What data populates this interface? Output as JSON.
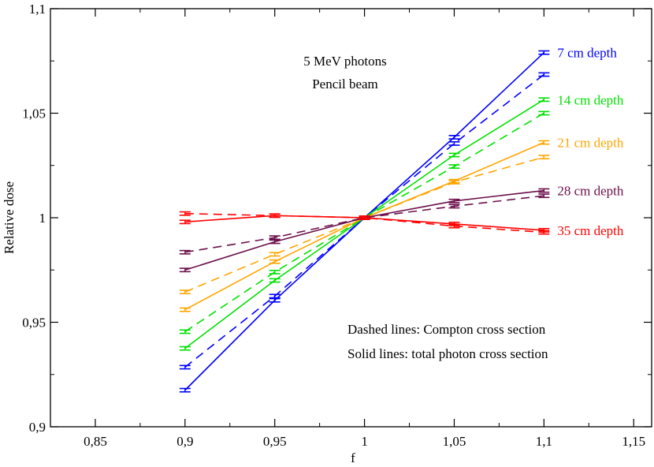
{
  "chart_data": {
    "type": "line",
    "title": "",
    "xlabel": "f",
    "ylabel": "Relative dose",
    "xlim": [
      0.825,
      1.16
    ],
    "ylim": [
      0.9,
      1.1
    ],
    "x_ticks": [
      {
        "value": 0.85,
        "label": "0,85"
      },
      {
        "value": 0.9,
        "label": "0,9"
      },
      {
        "value": 0.95,
        "label": "0,95"
      },
      {
        "value": 1.0,
        "label": "1"
      },
      {
        "value": 1.05,
        "label": "1,05"
      },
      {
        "value": 1.1,
        "label": "1,1"
      },
      {
        "value": 1.15,
        "label": "1,15"
      }
    ],
    "y_ticks": [
      {
        "value": 0.9,
        "label": "0,9"
      },
      {
        "value": 0.95,
        "label": "0,95"
      },
      {
        "value": 1.0,
        "label": "1"
      },
      {
        "value": 1.05,
        "label": "1,05"
      },
      {
        "value": 1.1,
        "label": "1,1"
      }
    ],
    "x": [
      0.9,
      0.95,
      1.0,
      1.05,
      1.1
    ],
    "annotations": {
      "title_line1": "5 MeV photons",
      "title_line2": "Pencil beam",
      "note_dashed": "Dashed lines: Compton cross section",
      "note_solid": "Solid lines: total photon cross section"
    },
    "series": [
      {
        "name": "7 cm depth",
        "label": "7 cm depth",
        "color": "#0000ff",
        "dashed": false,
        "values": [
          0.9175,
          0.9605,
          1.0,
          1.0385,
          1.079
        ],
        "err": 0.0008
      },
      {
        "name": "7 cm depth (Compton)",
        "label": "",
        "color": "#0000ff",
        "dashed": true,
        "values": [
          0.9285,
          0.9625,
          1.0,
          1.0355,
          1.0685
        ],
        "err": 0.0008
      },
      {
        "name": "14 cm depth",
        "label": "14 cm depth",
        "color": "#00e000",
        "dashed": false,
        "values": [
          0.9375,
          0.97,
          1.0,
          1.03,
          1.0565
        ],
        "err": 0.0008
      },
      {
        "name": "14 cm depth (Compton)",
        "label": "",
        "color": "#00e000",
        "dashed": true,
        "values": [
          0.9455,
          0.974,
          1.0,
          1.0245,
          1.05
        ],
        "err": 0.0008
      },
      {
        "name": "21 cm depth",
        "label": "21 cm depth",
        "color": "#ffa500",
        "dashed": false,
        "values": [
          0.956,
          0.979,
          1.0,
          1.0175,
          1.036
        ],
        "err": 0.0008
      },
      {
        "name": "21 cm depth (Compton)",
        "label": "",
        "color": "#ffa500",
        "dashed": true,
        "values": [
          0.9645,
          0.9825,
          1.0,
          1.017,
          1.029
        ],
        "err": 0.0008
      },
      {
        "name": "28 cm depth",
        "label": "28 cm depth",
        "color": "#6b0f4a",
        "dashed": false,
        "values": [
          0.975,
          0.9885,
          1.0,
          1.008,
          1.013
        ],
        "err": 0.0008
      },
      {
        "name": "28 cm depth (Compton)",
        "label": "",
        "color": "#6b0f4a",
        "dashed": true,
        "values": [
          0.9835,
          0.9905,
          1.0,
          1.0055,
          1.0105
        ],
        "err": 0.0008
      },
      {
        "name": "35 cm depth",
        "label": "35 cm depth",
        "color": "#ff0000",
        "dashed": false,
        "values": [
          0.998,
          1.001,
          1.0,
          0.997,
          0.994
        ],
        "err": 0.0008
      },
      {
        "name": "35 cm depth (Compton)",
        "label": "",
        "color": "#ff0000",
        "dashed": true,
        "values": [
          1.002,
          1.001,
          1.0,
          0.996,
          0.993
        ],
        "err": 0.0008
      }
    ]
  }
}
